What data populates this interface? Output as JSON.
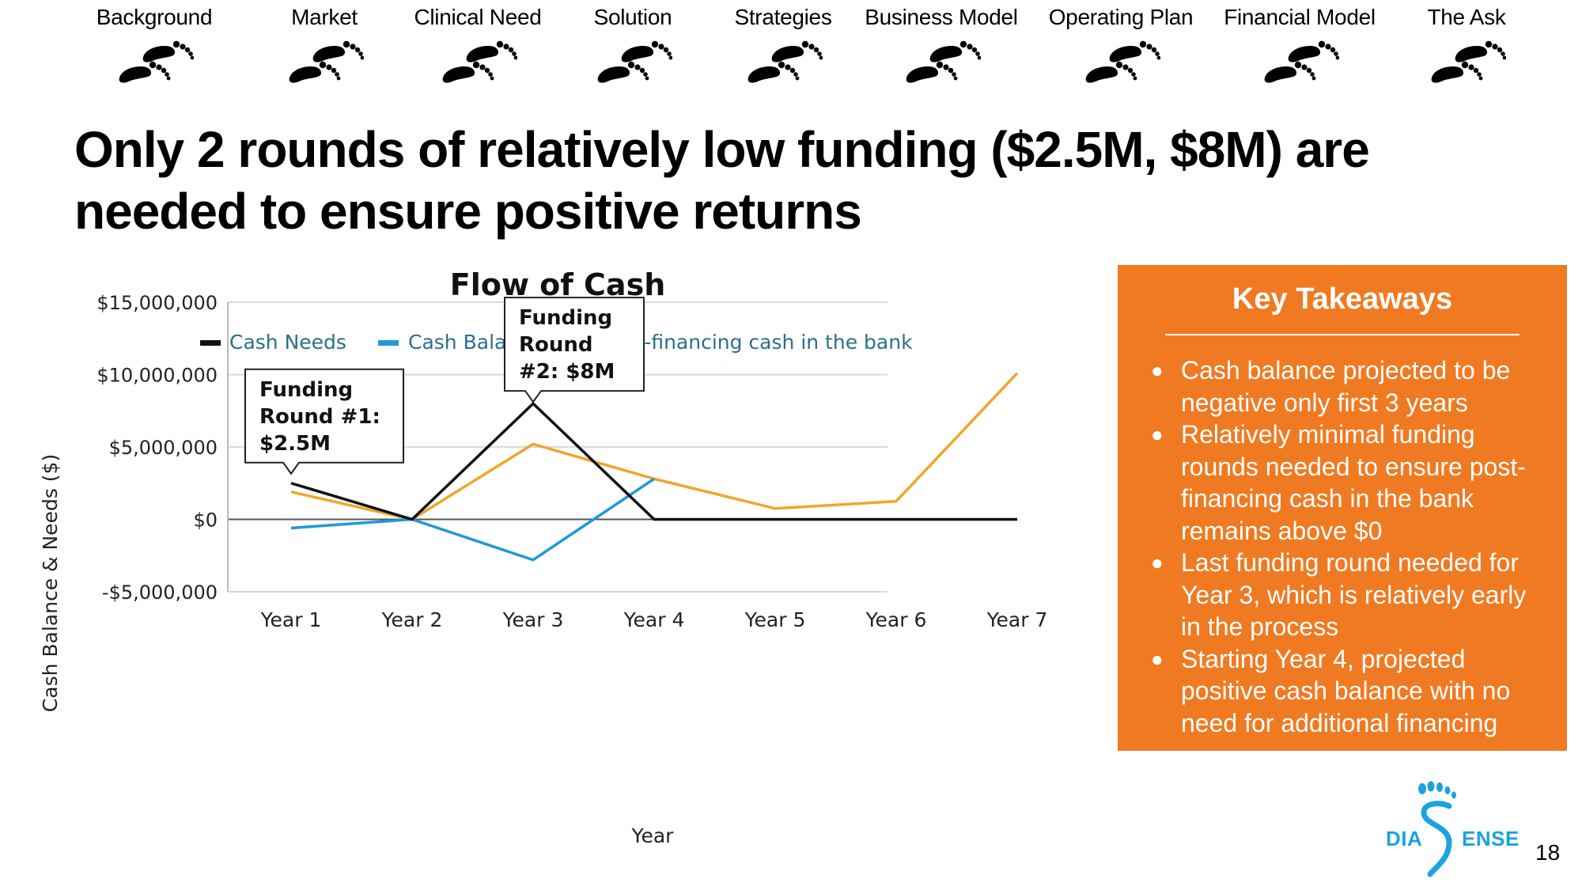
{
  "nav": {
    "steps": [
      {
        "label": "Background",
        "state": "done"
      },
      {
        "label": "Market",
        "state": "done"
      },
      {
        "label": "Clinical Need",
        "state": "done"
      },
      {
        "label": "Solution",
        "state": "done"
      },
      {
        "label": "Strategies",
        "state": "done"
      },
      {
        "label": "Business Model",
        "state": "done"
      },
      {
        "label": "Operating Plan",
        "state": "done"
      },
      {
        "label": "Financial Model",
        "state": "done"
      },
      {
        "label": "The Ask",
        "state": "pending"
      }
    ]
  },
  "slide": {
    "title_line1": "Only 2 rounds of relatively low funding ($2.5M, $8M) are",
    "title_line2": "needed to ensure positive returns",
    "page_number": "18"
  },
  "chart_data": {
    "type": "line",
    "title": "Flow of Cash",
    "xlabel": "Year",
    "ylabel": "Cash Balance & Needs ($)",
    "categories": [
      "Year 1",
      "Year 2",
      "Year 3",
      "Year 4",
      "Year 5",
      "Year 6",
      "Year 7"
    ],
    "ylim": [
      -5000000,
      15000000
    ],
    "yticks": [
      -5000000,
      0,
      5000000,
      10000000,
      15000000
    ],
    "ytick_labels": [
      "-$5,000,000",
      "$0",
      "$5,000,000",
      "$10,000,000",
      "$15,000,000"
    ],
    "grid": true,
    "legend_position": "top",
    "series": [
      {
        "name": "Cash Needs",
        "color": "#111111",
        "values": [
          2500000,
          0,
          8000000,
          0,
          0,
          0,
          0
        ]
      },
      {
        "name": "Cash Balance",
        "color": "#1f9ad6",
        "values": [
          -600000,
          0,
          -2800000,
          2800000,
          null,
          null,
          null
        ]
      },
      {
        "name": "Post-financing cash in the bank",
        "color": "#f0a62a",
        "values": [
          1900000,
          0,
          5200000,
          2800000,
          750000,
          1250000,
          10100000
        ]
      }
    ],
    "annotations": [
      {
        "lines": [
          "Funding",
          "Round #1:",
          "$2.5M"
        ],
        "category": "Year 1",
        "value": 2500000
      },
      {
        "lines": [
          "Funding",
          "Round",
          "#2: $8M"
        ],
        "category": "Year 3",
        "value": 8000000
      }
    ]
  },
  "takeaways": {
    "title": "Key Takeaways",
    "items": [
      "Cash balance projected to be negative only first 3 years",
      "Relatively minimal funding rounds needed to ensure post-financing cash in the bank remains above $0",
      "Last funding round needed for Year 3, which is relatively early in the process",
      "Starting Year 4, projected positive cash balance with no need for additional financing"
    ]
  },
  "logo": {
    "left_text": "DIA",
    "right_text": "ENSE",
    "color": "#1ba3df"
  }
}
